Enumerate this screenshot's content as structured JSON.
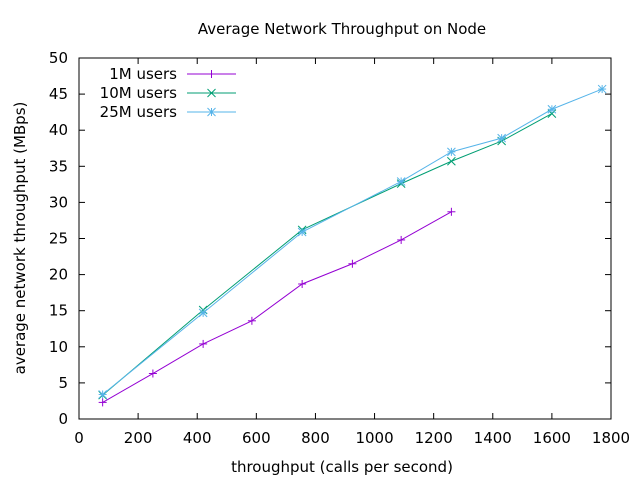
{
  "chart_data": {
    "type": "line",
    "title": "Average Network Throughput on Node",
    "xlabel": "throughput (calls per second)",
    "ylabel": "average network throughput (MBps)",
    "xlim": [
      0,
      1800
    ],
    "ylim": [
      0,
      50
    ],
    "xticks": [
      0,
      200,
      400,
      600,
      800,
      1000,
      1200,
      1400,
      1600,
      1800
    ],
    "yticks": [
      0,
      5,
      10,
      15,
      20,
      25,
      30,
      35,
      40,
      45,
      50
    ],
    "grid": false,
    "legend_position": "top-left",
    "series": [
      {
        "name": "1M users",
        "color": "#9400d3",
        "marker": "plus",
        "x": [
          80,
          250,
          420,
          585,
          755,
          925,
          1090,
          1260
        ],
        "y": [
          2.3,
          6.3,
          10.4,
          13.6,
          18.7,
          21.5,
          24.8,
          28.7
        ]
      },
      {
        "name": "10M users",
        "color": "#009e73",
        "marker": "cross",
        "x": [
          80,
          420,
          755,
          1090,
          1260,
          1430,
          1600
        ],
        "y": [
          3.3,
          15.1,
          26.2,
          32.6,
          35.7,
          38.5,
          42.3
        ]
      },
      {
        "name": "25M users",
        "color": "#56b4e9",
        "marker": "star",
        "x": [
          80,
          420,
          755,
          1090,
          1260,
          1430,
          1600,
          1770
        ],
        "y": [
          3.4,
          14.7,
          25.9,
          32.9,
          37.0,
          38.9,
          42.9,
          45.7
        ]
      }
    ]
  }
}
